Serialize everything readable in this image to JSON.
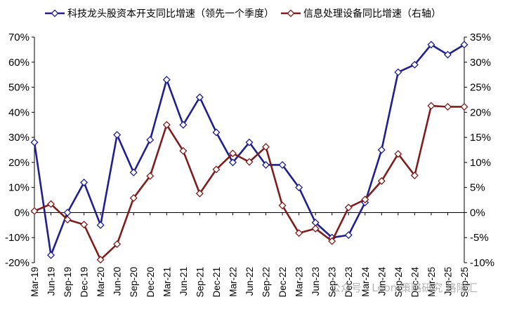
{
  "chart_data": {
    "type": "line",
    "categories": [
      "Mar-19",
      "Jun-19",
      "Sep-19",
      "Dec-19",
      "Mar-20",
      "Jun-20",
      "Sep-20",
      "Dec-20",
      "Mar-21",
      "Jun-21",
      "Sep-21",
      "Dec-21",
      "Mar-22",
      "Jun-22",
      "Sep-22",
      "Dec-22",
      "Mar-23",
      "Jun-23",
      "Sep-23",
      "Dec-23",
      "Mar-24",
      "Jun-24",
      "Sep-24",
      "Dec-24",
      "Mar-25",
      "Jun-25",
      "Sep-25"
    ],
    "series": [
      {
        "name": "科技龙头股资本开支同比增速（领先一个季度）",
        "axis": "left",
        "color": "#1f1f8f",
        "values": [
          28,
          -17,
          0,
          12,
          -5,
          31,
          16,
          29,
          53,
          35,
          46,
          32,
          20,
          28,
          19,
          19,
          10,
          -4,
          -10,
          -9,
          4,
          25,
          56,
          59,
          67,
          63,
          67
        ]
      },
      {
        "name": "信息处理设备同比增速（右轴）",
        "axis": "right",
        "color": "#7f1d1d",
        "values": [
          0.3,
          1.7,
          -1.4,
          -2.4,
          -9.4,
          -6.3,
          2.9,
          7.3,
          17.5,
          12.3,
          3.8,
          8.6,
          11.8,
          10.1,
          13.1,
          1.4,
          -4.1,
          -3.2,
          -5.7,
          1.0,
          2.6,
          6.3,
          11.7,
          7.4,
          21.3,
          21.1,
          21.1
        ]
      }
    ],
    "yaxis_left": {
      "min": -20,
      "max": 70,
      "step": 10,
      "labels": [
        "-20%",
        "-10%",
        "0%",
        "10%",
        "20%",
        "30%",
        "40%",
        "50%",
        "60%",
        "70%"
      ]
    },
    "yaxis_right": {
      "min": -10,
      "max": 35,
      "step": 5,
      "labels": [
        "-10%",
        "-5%",
        "0%",
        "5%",
        "10%",
        "15%",
        "20%",
        "25%",
        "30%",
        "35%"
      ],
      "label_color": "#000000"
    },
    "left_negative_color": "#cc0000",
    "right_negative_color": "#cc0000",
    "grid": false,
    "legend_position": "top"
  },
  "watermark": {
    "text": "公众号 · Leon 策略研究  格隆汇"
  }
}
